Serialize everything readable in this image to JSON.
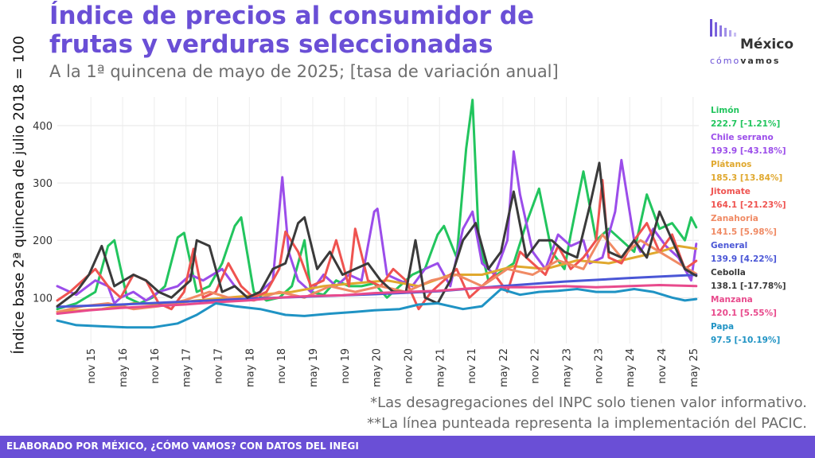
{
  "title": "Índice de precios al consumidor de frutas y verduras seleccionadas",
  "subtitle": "A la 1ª quincena de mayo de 2025; [tasa de variación anual]",
  "logo": {
    "word": "México",
    "sub_a": "cómo",
    "sub_b": "vamos"
  },
  "footer": "ELABORADO POR MÉXICO, ¿CÓMO VAMOS? CON DATOS DEL INEGI",
  "notes": [
    "*Las desagregaciones del INPC solo tienen valor informativo.",
    "**La línea punteada representa la implementación del PACIC."
  ],
  "chart_data": {
    "type": "line",
    "ylabel": "Índice base 2ª quincena de julio 2018 = 100",
    "y_ticks": [
      100,
      200,
      300,
      400
    ],
    "ylim": [
      20,
      450
    ],
    "x_ticks": [
      "nov 15",
      "may 16",
      "nov 16",
      "may 17",
      "nov 17",
      "may 18",
      "nov 18",
      "may 19",
      "nov 19",
      "may 20",
      "nov 20",
      "may 21",
      "nov 21",
      "may 22",
      "nov 22",
      "may 23",
      "nov 23",
      "may 24",
      "nov 24",
      "may 25"
    ],
    "x_tick_years": [
      2015.83,
      2016.33,
      2016.83,
      2017.33,
      2017.83,
      2018.33,
      2018.83,
      2019.33,
      2019.83,
      2020.33,
      2020.83,
      2021.33,
      2021.83,
      2022.33,
      2022.83,
      2023.33,
      2023.83,
      2024.33,
      2024.83,
      2025.33
    ],
    "xlim": [
      2015.3,
      2025.42
    ],
    "grid": true,
    "series": [
      {
        "name": "Limón",
        "label": "222.7 [-1.21%]",
        "color": "#22c55e",
        "x": [
          2015.3,
          2015.6,
          2015.9,
          2016.1,
          2016.2,
          2016.4,
          2016.6,
          2016.8,
          2017.0,
          2017.2,
          2017.3,
          2017.5,
          2017.7,
          2017.9,
          2018.1,
          2018.2,
          2018.4,
          2018.6,
          2018.8,
          2019.0,
          2019.2,
          2019.3,
          2019.5,
          2019.7,
          2019.9,
          2020.1,
          2020.3,
          2020.5,
          2020.7,
          2020.9,
          2021.1,
          2021.3,
          2021.4,
          2021.6,
          2021.75,
          2021.85,
          2021.95,
          2022.1,
          2022.3,
          2022.5,
          2022.7,
          2022.9,
          2023.1,
          2023.3,
          2023.4,
          2023.6,
          2023.8,
          2024.0,
          2024.2,
          2024.4,
          2024.6,
          2024.8,
          2025.0,
          2025.2,
          2025.3,
          2025.38
        ],
        "y": [
          80,
          90,
          110,
          190,
          200,
          100,
          90,
          100,
          120,
          205,
          213,
          110,
          120,
          160,
          225,
          240,
          110,
          95,
          100,
          120,
          200,
          110,
          105,
          130,
          120,
          120,
          125,
          100,
          120,
          140,
          150,
          210,
          225,
          170,
          360,
          445,
          200,
          130,
          145,
          160,
          230,
          290,
          180,
          150,
          210,
          320,
          200,
          220,
          200,
          180,
          280,
          220,
          230,
          200,
          240,
          222.7
        ]
      },
      {
        "name": "Chile serrano",
        "label": "193.9 [-43.18%]",
        "color": "#9b4dea",
        "x": [
          2015.3,
          2015.6,
          2015.9,
          2016.1,
          2016.2,
          2016.3,
          2016.5,
          2016.7,
          2016.9,
          2017.2,
          2017.4,
          2017.6,
          2017.9,
          2018.1,
          2018.3,
          2018.5,
          2018.7,
          2018.85,
          2018.95,
          2019.1,
          2019.3,
          2019.5,
          2019.7,
          2019.9,
          2020.1,
          2020.3,
          2020.35,
          2020.5,
          2020.7,
          2020.9,
          2021.1,
          2021.3,
          2021.5,
          2021.7,
          2021.85,
          2022.0,
          2022.2,
          2022.4,
          2022.5,
          2022.6,
          2022.8,
          2023.0,
          2023.2,
          2023.4,
          2023.6,
          2023.7,
          2023.9,
          2024.1,
          2024.2,
          2024.4,
          2024.5,
          2024.7,
          2024.9,
          2025.1,
          2025.3,
          2025.38
        ],
        "y": [
          120,
          105,
          130,
          120,
          90,
          100,
          110,
          95,
          110,
          120,
          140,
          130,
          150,
          120,
          100,
          110,
          130,
          310,
          180,
          130,
          110,
          140,
          120,
          140,
          130,
          250,
          255,
          140,
          130,
          120,
          150,
          160,
          120,
          220,
          250,
          160,
          140,
          200,
          355,
          280,
          180,
          150,
          210,
          190,
          200,
          160,
          170,
          250,
          340,
          200,
          180,
          220,
          190,
          170,
          130,
          193.9
        ]
      },
      {
        "name": "Plátanos",
        "label": "185.3 [13.84%]",
        "color": "#e0a82e",
        "x": [
          2015.3,
          2016.0,
          2016.5,
          2017.0,
          2017.5,
          2018.0,
          2018.5,
          2019.0,
          2019.5,
          2020.0,
          2020.5,
          2021.0,
          2021.5,
          2022.0,
          2022.5,
          2023.0,
          2023.5,
          2024.0,
          2024.4,
          2024.8,
          2025.1,
          2025.38
        ],
        "y": [
          75,
          80,
          90,
          88,
          95,
          100,
          105,
          110,
          120,
          125,
          130,
          120,
          140,
          140,
          155,
          150,
          165,
          160,
          170,
          180,
          190,
          185.3
        ]
      },
      {
        "name": "Jitomate",
        "label": "164.1 [-21.23%]",
        "color": "#ef5350",
        "x": [
          2015.3,
          2015.5,
          2015.7,
          2015.9,
          2016.1,
          2016.3,
          2016.5,
          2016.7,
          2016.9,
          2017.1,
          2017.3,
          2017.45,
          2017.6,
          2017.8,
          2018.0,
          2018.2,
          2018.4,
          2018.6,
          2018.8,
          2018.9,
          2019.1,
          2019.3,
          2019.5,
          2019.7,
          2019.9,
          2020.0,
          2020.2,
          2020.4,
          2020.6,
          2020.8,
          2021.0,
          2021.2,
          2021.4,
          2021.6,
          2021.8,
          2022.0,
          2022.2,
          2022.4,
          2022.6,
          2022.8,
          2023.0,
          2023.2,
          2023.4,
          2023.6,
          2023.8,
          2023.9,
          2024.0,
          2024.2,
          2024.4,
          2024.6,
          2024.8,
          2025.0,
          2025.2,
          2025.38
        ],
        "y": [
          95,
          110,
          130,
          150,
          120,
          100,
          140,
          130,
          90,
          80,
          110,
          185,
          100,
          110,
          160,
          120,
          100,
          110,
          150,
          215,
          180,
          120,
          130,
          200,
          120,
          220,
          130,
          120,
          150,
          130,
          80,
          110,
          130,
          150,
          100,
          120,
          140,
          110,
          180,
          160,
          140,
          190,
          150,
          170,
          200,
          305,
          170,
          160,
          200,
          230,
          180,
          210,
          150,
          164.1
        ]
      },
      {
        "name": "Zanahoria",
        "label": "141.5 [5.98%]",
        "color": "#f08a64",
        "x": [
          2015.3,
          2015.7,
          2016.1,
          2016.5,
          2016.9,
          2017.3,
          2017.7,
          2018.0,
          2018.4,
          2018.8,
          2019.2,
          2019.6,
          2020.0,
          2020.4,
          2020.8,
          2021.2,
          2021.6,
          2022.0,
          2022.4,
          2022.8,
          2023.2,
          2023.6,
          2023.9,
          2024.2,
          2024.5,
          2024.8,
          2025.1,
          2025.38
        ],
        "y": [
          75,
          85,
          90,
          80,
          85,
          95,
          110,
          100,
          95,
          110,
          100,
          120,
          110,
          120,
          110,
          130,
          140,
          120,
          150,
          140,
          165,
          150,
          210,
          170,
          200,
          180,
          160,
          141.5
        ]
      },
      {
        "name": "General",
        "label": "139.9 [4.22%]",
        "color": "#4a56d6",
        "x": [
          2015.3,
          2016.3,
          2017.3,
          2018.3,
          2019.3,
          2020.3,
          2021.3,
          2022.3,
          2023.3,
          2024.3,
          2025.38
        ],
        "y": [
          84,
          88,
          93,
          98,
          102,
          106,
          111,
          120,
          128,
          134,
          139.9
        ]
      },
      {
        "name": "Cebolla",
        "label": "138.1 [-17.78%]",
        "color": "#3a3a3a",
        "x": [
          2015.3,
          2015.6,
          2015.8,
          2016.0,
          2016.2,
          2016.5,
          2016.7,
          2016.9,
          2017.1,
          2017.4,
          2017.5,
          2017.7,
          2017.9,
          2018.1,
          2018.3,
          2018.5,
          2018.7,
          2018.9,
          2019.1,
          2019.2,
          2019.4,
          2019.6,
          2019.8,
          2020.0,
          2020.2,
          2020.4,
          2020.6,
          2020.8,
          2020.95,
          2021.1,
          2021.3,
          2021.5,
          2021.7,
          2021.9,
          2022.1,
          2022.3,
          2022.5,
          2022.7,
          2022.9,
          2023.1,
          2023.3,
          2023.5,
          2023.7,
          2023.85,
          2024.0,
          2024.2,
          2024.4,
          2024.6,
          2024.8,
          2025.0,
          2025.2,
          2025.38
        ],
        "y": [
          85,
          110,
          140,
          190,
          120,
          140,
          130,
          110,
          100,
          130,
          200,
          190,
          110,
          120,
          100,
          110,
          150,
          160,
          230,
          240,
          150,
          180,
          140,
          150,
          160,
          130,
          110,
          110,
          200,
          100,
          90,
          130,
          200,
          230,
          150,
          180,
          285,
          170,
          200,
          200,
          180,
          170,
          260,
          335,
          180,
          170,
          200,
          170,
          250,
          200,
          150,
          138.1
        ]
      },
      {
        "name": "Manzana",
        "label": "120.1 [5.55%]",
        "color": "#e84a8c",
        "x": [
          2015.3,
          2015.8,
          2016.3,
          2016.8,
          2017.3,
          2017.8,
          2018.3,
          2018.8,
          2019.3,
          2019.8,
          2020.3,
          2020.8,
          2021.3,
          2021.8,
          2022.3,
          2022.8,
          2023.3,
          2023.8,
          2024.3,
          2024.8,
          2025.38
        ],
        "y": [
          72,
          78,
          82,
          85,
          88,
          92,
          95,
          100,
          103,
          104,
          108,
          110,
          112,
          116,
          118,
          118,
          120,
          118,
          120,
          122,
          120.1
        ]
      },
      {
        "name": "Papa",
        "label": "97.5 [-10.19%]",
        "color": "#1f93c4",
        "x": [
          2015.3,
          2015.6,
          2016.0,
          2016.4,
          2016.8,
          2017.2,
          2017.5,
          2017.8,
          2018.1,
          2018.5,
          2018.9,
          2019.2,
          2019.6,
          2020.0,
          2020.3,
          2020.7,
          2021.0,
          2021.3,
          2021.7,
          2022.0,
          2022.3,
          2022.6,
          2022.9,
          2023.2,
          2023.5,
          2023.8,
          2024.1,
          2024.4,
          2024.7,
          2025.0,
          2025.2,
          2025.38
        ],
        "y": [
          60,
          52,
          50,
          48,
          48,
          55,
          70,
          90,
          85,
          80,
          70,
          68,
          72,
          75,
          78,
          80,
          88,
          90,
          80,
          85,
          115,
          105,
          110,
          112,
          115,
          110,
          110,
          115,
          110,
          100,
          95,
          97.5
        ]
      }
    ]
  }
}
